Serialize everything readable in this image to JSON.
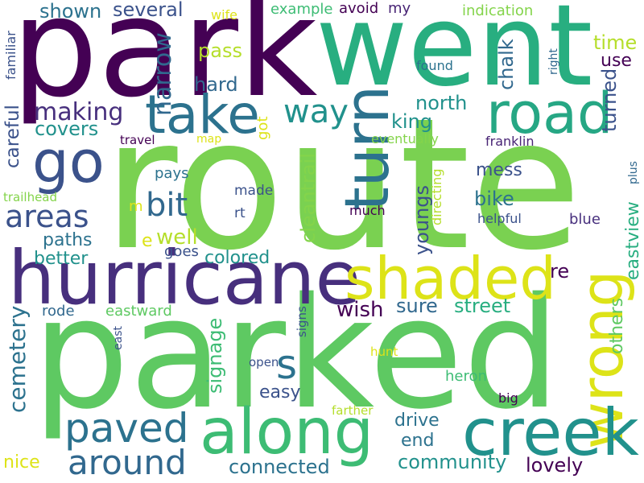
{
  "palette": {
    "dark_purple": "#440154",
    "indigo": "#472f7d",
    "blue": "#3b528b",
    "slate_blue": "#2c728e",
    "teal": "#21918c",
    "sea_green": "#28ae80",
    "green": "#5ec962",
    "lime": "#84d44b",
    "yellow": "#dde318"
  },
  "words": [
    {
      "text": "park",
      "color": "#440154"
    },
    {
      "text": "went",
      "color": "#28ae80"
    },
    {
      "text": "route",
      "color": "#7ad151"
    },
    {
      "text": "parked",
      "color": "#5ec962"
    },
    {
      "text": "hurricane",
      "color": "#472f7d"
    },
    {
      "text": "road",
      "color": "#26a784"
    },
    {
      "text": "take",
      "color": "#2c728e"
    },
    {
      "text": "go",
      "color": "#3b528b"
    },
    {
      "text": "turn",
      "color": "#2c728e"
    },
    {
      "text": "shaded",
      "color": "#dde318"
    },
    {
      "text": "wrong",
      "color": "#dde318"
    },
    {
      "text": "along",
      "color": "#3dbc74"
    },
    {
      "text": "creek",
      "color": "#21918c"
    },
    {
      "text": "paved",
      "color": "#2c728e"
    },
    {
      "text": "around",
      "color": "#31688e"
    },
    {
      "text": "areas",
      "color": "#3b528b"
    },
    {
      "text": "bit",
      "color": "#31688e"
    },
    {
      "text": "making",
      "color": "#472f7d"
    },
    {
      "text": "way",
      "color": "#21918c"
    },
    {
      "text": "s",
      "color": "#2c728e"
    },
    {
      "text": "shown",
      "color": "#2c728e"
    },
    {
      "text": "several",
      "color": "#3b528b"
    },
    {
      "text": "narrow",
      "color": "#31688e"
    },
    {
      "text": "pass",
      "color": "#b5de2b"
    },
    {
      "text": "hard",
      "color": "#31688e"
    },
    {
      "text": "covers",
      "color": "#21918c"
    },
    {
      "text": "careful",
      "color": "#3b528b"
    },
    {
      "text": "familiar",
      "color": "#3b528b"
    },
    {
      "text": "wife",
      "color": "#dde318"
    },
    {
      "text": "example",
      "color": "#3dbc74"
    },
    {
      "text": "avoid",
      "color": "#440154"
    },
    {
      "text": "my",
      "color": "#482475"
    },
    {
      "text": "indication",
      "color": "#84d44b"
    },
    {
      "text": "time",
      "color": "#b5de2b"
    },
    {
      "text": "use",
      "color": "#440154"
    },
    {
      "text": "chalk",
      "color": "#31688e"
    },
    {
      "text": "turned",
      "color": "#3b528b"
    },
    {
      "text": "found",
      "color": "#2c728e"
    },
    {
      "text": "right",
      "color": "#31688e"
    },
    {
      "text": "north",
      "color": "#21918c"
    },
    {
      "text": "king",
      "color": "#21918c"
    },
    {
      "text": "got",
      "color": "#dde318"
    },
    {
      "text": "eventually",
      "color": "#84d44b"
    },
    {
      "text": "travel",
      "color": "#440154"
    },
    {
      "text": "map",
      "color": "#dde318"
    },
    {
      "text": "franklin",
      "color": "#482475"
    },
    {
      "text": "plus",
      "color": "#31688e"
    },
    {
      "text": "pays",
      "color": "#2c728e"
    },
    {
      "text": "trailhead",
      "color": "#84d44b"
    },
    {
      "text": "made",
      "color": "#3b528b"
    },
    {
      "text": "rt",
      "color": "#3b528b"
    },
    {
      "text": "m",
      "color": "#dde318"
    },
    {
      "text": "much",
      "color": "#440154"
    },
    {
      "text": "cleantrail",
      "color": "#84d44b"
    },
    {
      "text": "youngs",
      "color": "#3b528b"
    },
    {
      "text": "directing",
      "color": "#b5de2b"
    },
    {
      "text": "mess",
      "color": "#3b528b"
    },
    {
      "text": "bike",
      "color": "#2c728e"
    },
    {
      "text": "helpful",
      "color": "#3b528b"
    },
    {
      "text": "blue",
      "color": "#472f7d"
    },
    {
      "text": "eastview",
      "color": "#28ae80"
    },
    {
      "text": "well",
      "color": "#b5de2b"
    },
    {
      "text": "e",
      "color": "#dde318"
    },
    {
      "text": "paths",
      "color": "#2c728e"
    },
    {
      "text": "goes",
      "color": "#3b528b"
    },
    {
      "text": "colored",
      "color": "#21918c"
    },
    {
      "text": "better",
      "color": "#21918c"
    },
    {
      "text": "re",
      "color": "#440154"
    },
    {
      "text": "others",
      "color": "#5ec962"
    },
    {
      "text": "wish",
      "color": "#440154"
    },
    {
      "text": "sure",
      "color": "#31688e"
    },
    {
      "text": "street",
      "color": "#28ae80"
    },
    {
      "text": "signage",
      "color": "#3dbc74"
    },
    {
      "text": "rode",
      "color": "#31688e"
    },
    {
      "text": "eastward",
      "color": "#5ec962"
    },
    {
      "text": "cemetery",
      "color": "#2c728e"
    },
    {
      "text": "east",
      "color": "#3b528b"
    },
    {
      "text": "signs",
      "color": "#3b528b"
    },
    {
      "text": "hunt",
      "color": "#dde318"
    },
    {
      "text": "open",
      "color": "#3b528b"
    },
    {
      "text": "easy",
      "color": "#3b528b"
    },
    {
      "text": "heron",
      "color": "#3dbc74"
    },
    {
      "text": "big",
      "color": "#440154"
    },
    {
      "text": "farther",
      "color": "#b5de2b"
    },
    {
      "text": "drive",
      "color": "#2c728e"
    },
    {
      "text": "end",
      "color": "#2c728e"
    },
    {
      "text": "community",
      "color": "#21918c"
    },
    {
      "text": "lovely",
      "color": "#440154"
    },
    {
      "text": "connected",
      "color": "#2c728e"
    },
    {
      "text": "nice",
      "color": "#dde318"
    }
  ]
}
